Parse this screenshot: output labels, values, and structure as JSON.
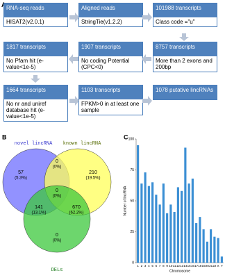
{
  "flowchart": {
    "panel_label": "A",
    "boxes": [
      {
        "head": "RNA-seq reads",
        "body": "HISAT2(v2.0.1)"
      },
      {
        "head": "Aligned reads",
        "body": "StringTie(v1.2.2)"
      },
      {
        "head": "101988 transcripts",
        "body": "Class code =\"u\""
      },
      {
        "head": "8757 transcripts",
        "body": "More than 2 exons and 200bp"
      },
      {
        "head": "1907 transcripts",
        "body": "No coding Potential (CPC<0)"
      },
      {
        "head": "1817 transcripts",
        "body": "No Pfam hit (e-value<1e-5)"
      },
      {
        "head": "1664 transcripts",
        "body": "No nr and uniref database hit (e-value<1e-5)"
      },
      {
        "head": "1103 transcripts",
        "body": "FPKM>0 in at least one sample"
      },
      {
        "head": "1078 putative lincRNAs"
      }
    ]
  },
  "venn": {
    "panel_label": "B",
    "sets": [
      "novel lincRNA",
      "known lincRNA",
      "DELs"
    ],
    "regions": [
      {
        "count": "57",
        "percent": "(5.3%)"
      },
      {
        "count": "0",
        "percent": "(0%)"
      },
      {
        "count": "210",
        "percent": "(19.5%)"
      },
      {
        "count": "141",
        "percent": "(13.1%)"
      },
      {
        "count": "0",
        "percent": "(0%)"
      },
      {
        "count": "670",
        "percent": "(62.2%)"
      },
      {
        "count": "0",
        "percent": "(0%)"
      }
    ]
  },
  "chart_data": {
    "type": "bar",
    "panel_label": "C",
    "xlabel": "Chromosome",
    "ylabel": "Number of lincRNA",
    "categories": [
      "1",
      "2",
      "3",
      "4",
      "5",
      "6",
      "7",
      "8",
      "9",
      "10",
      "11",
      "12",
      "13",
      "14",
      "15",
      "16",
      "17",
      "18",
      "19",
      "20",
      "21",
      "22",
      "X",
      "Y"
    ],
    "values": [
      95,
      64,
      73,
      62,
      65,
      55,
      47,
      64,
      40,
      47,
      41,
      61,
      58,
      93,
      64,
      68,
      32,
      37,
      27,
      17,
      27,
      21,
      20,
      5
    ],
    "color": "#3b8fd4",
    "ylim": [
      0,
      100
    ],
    "yticks": [
      0,
      25,
      50,
      75,
      100
    ]
  }
}
